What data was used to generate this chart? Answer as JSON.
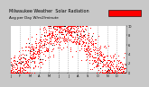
{
  "title": "Milwaukee Weather  Solar Radiation",
  "subtitle": "Avg per Day W/m2/minute",
  "bg_color": "#c8c8c8",
  "plot_bg": "#ffffff",
  "dot_color": "#ff0000",
  "dot_color2": "#000000",
  "ylim": [
    0,
    10
  ],
  "xlim": [
    0,
    365
  ],
  "yticks": [
    0,
    2,
    4,
    6,
    8,
    10
  ],
  "ytick_labels": [
    "0",
    "2",
    "4",
    "6",
    "8",
    "10"
  ],
  "vline_positions": [
    30,
    60,
    91,
    121,
    152,
    182,
    213,
    244,
    274,
    305,
    335
  ],
  "legend_color": "#ff0000",
  "legend_border": "#000000",
  "title_fontsize": 3.5,
  "tick_fontsize": 2.5
}
